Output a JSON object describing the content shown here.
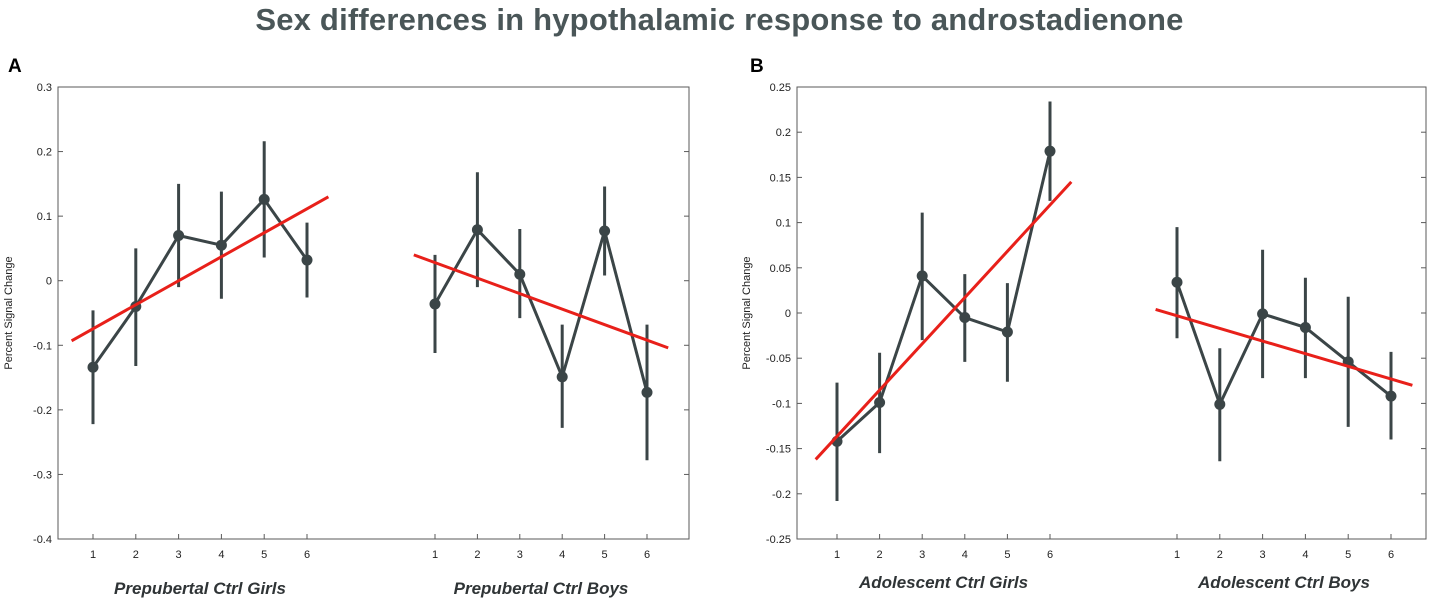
{
  "title": "Sex differences in hypothalamic response to androstadienone",
  "colors": {
    "title": "#4a5658",
    "series": "#3b4547",
    "trend": "#e8201a",
    "axis": "#5a5a5a"
  },
  "chart_data": [
    {
      "panel": "A",
      "type": "line",
      "ylabel": "Percent Signal Change",
      "ylim": [
        -0.4,
        0.3
      ],
      "yticks": [
        "0.3",
        "0.2",
        "0.1",
        "0",
        "-0.1",
        "-0.2",
        "-0.3",
        "-0.4"
      ],
      "ytick_values": [
        0.3,
        0.2,
        0.1,
        0,
        -0.1,
        -0.2,
        -0.3,
        -0.4
      ],
      "grid": false,
      "groups": [
        {
          "name": "Prepubertal Ctrl Girls",
          "x": [
            1,
            2,
            3,
            4,
            5,
            6
          ],
          "xtick_labels": [
            "1",
            "2",
            "3",
            "4",
            "5",
            "6"
          ],
          "values": [
            -0.134,
            -0.04,
            0.07,
            0.055,
            0.126,
            0.032
          ],
          "err_low": [
            -0.222,
            -0.132,
            -0.01,
            -0.028,
            0.036,
            -0.026
          ],
          "err_high": [
            -0.046,
            0.05,
            0.15,
            0.138,
            0.216,
            0.09
          ],
          "trend": {
            "x_start": 0.5,
            "y_start": -0.093,
            "x_end": 6.5,
            "y_end": 0.13
          }
        },
        {
          "name": "Prepubertal Ctrl Boys",
          "x": [
            1,
            2,
            3,
            4,
            5,
            6
          ],
          "xtick_labels": [
            "1",
            "2",
            "3",
            "4",
            "5",
            "6"
          ],
          "values": [
            -0.036,
            0.079,
            0.01,
            -0.149,
            0.077,
            -0.173
          ],
          "err_low": [
            -0.112,
            -0.01,
            -0.058,
            -0.228,
            0.008,
            -0.278
          ],
          "err_high": [
            0.04,
            0.168,
            0.08,
            -0.068,
            0.146,
            -0.068
          ],
          "trend": {
            "x_start": 0.5,
            "y_start": 0.04,
            "x_end": 6.5,
            "y_end": -0.104
          }
        }
      ]
    },
    {
      "panel": "B",
      "type": "line",
      "ylabel": "Percent Signal Change",
      "ylim": [
        -0.25,
        0.25
      ],
      "yticks": [
        "0.25",
        "0.2",
        "0.15",
        "0.1",
        "0.05",
        "0",
        "-0.05",
        "-0.1",
        "-0.15",
        "-0.2",
        "-0.25"
      ],
      "ytick_values": [
        0.25,
        0.2,
        0.15,
        0.1,
        0.05,
        0,
        -0.05,
        -0.1,
        -0.15,
        -0.2,
        -0.25
      ],
      "grid": false,
      "groups": [
        {
          "name": "Adolescent Ctrl Girls",
          "x": [
            1,
            2,
            3,
            4,
            5,
            6
          ],
          "xtick_labels": [
            "1",
            "2",
            "3",
            "4",
            "5",
            "6"
          ],
          "values": [
            -0.142,
            -0.099,
            0.041,
            -0.005,
            -0.021,
            0.179
          ],
          "err_low": [
            -0.208,
            -0.155,
            -0.03,
            -0.054,
            -0.076,
            0.124
          ],
          "err_high": [
            -0.077,
            -0.044,
            0.111,
            0.043,
            0.033,
            0.234
          ],
          "trend": {
            "x_start": 0.5,
            "y_start": -0.162,
            "x_end": 6.5,
            "y_end": 0.145
          }
        },
        {
          "name": "Adolescent Ctrl Boys",
          "x": [
            1,
            2,
            3,
            4,
            5,
            6
          ],
          "xtick_labels": [
            "1",
            "2",
            "3",
            "4",
            "5",
            "6"
          ],
          "values": [
            0.034,
            -0.101,
            -0.001,
            -0.016,
            -0.054,
            -0.092
          ],
          "err_low": [
            -0.028,
            -0.164,
            -0.072,
            -0.072,
            -0.126,
            -0.14
          ],
          "err_high": [
            0.095,
            -0.039,
            0.07,
            0.039,
            0.018,
            -0.043
          ],
          "trend": {
            "x_start": 0.5,
            "y_start": 0.004,
            "x_end": 6.5,
            "y_end": -0.08
          }
        }
      ]
    }
  ]
}
